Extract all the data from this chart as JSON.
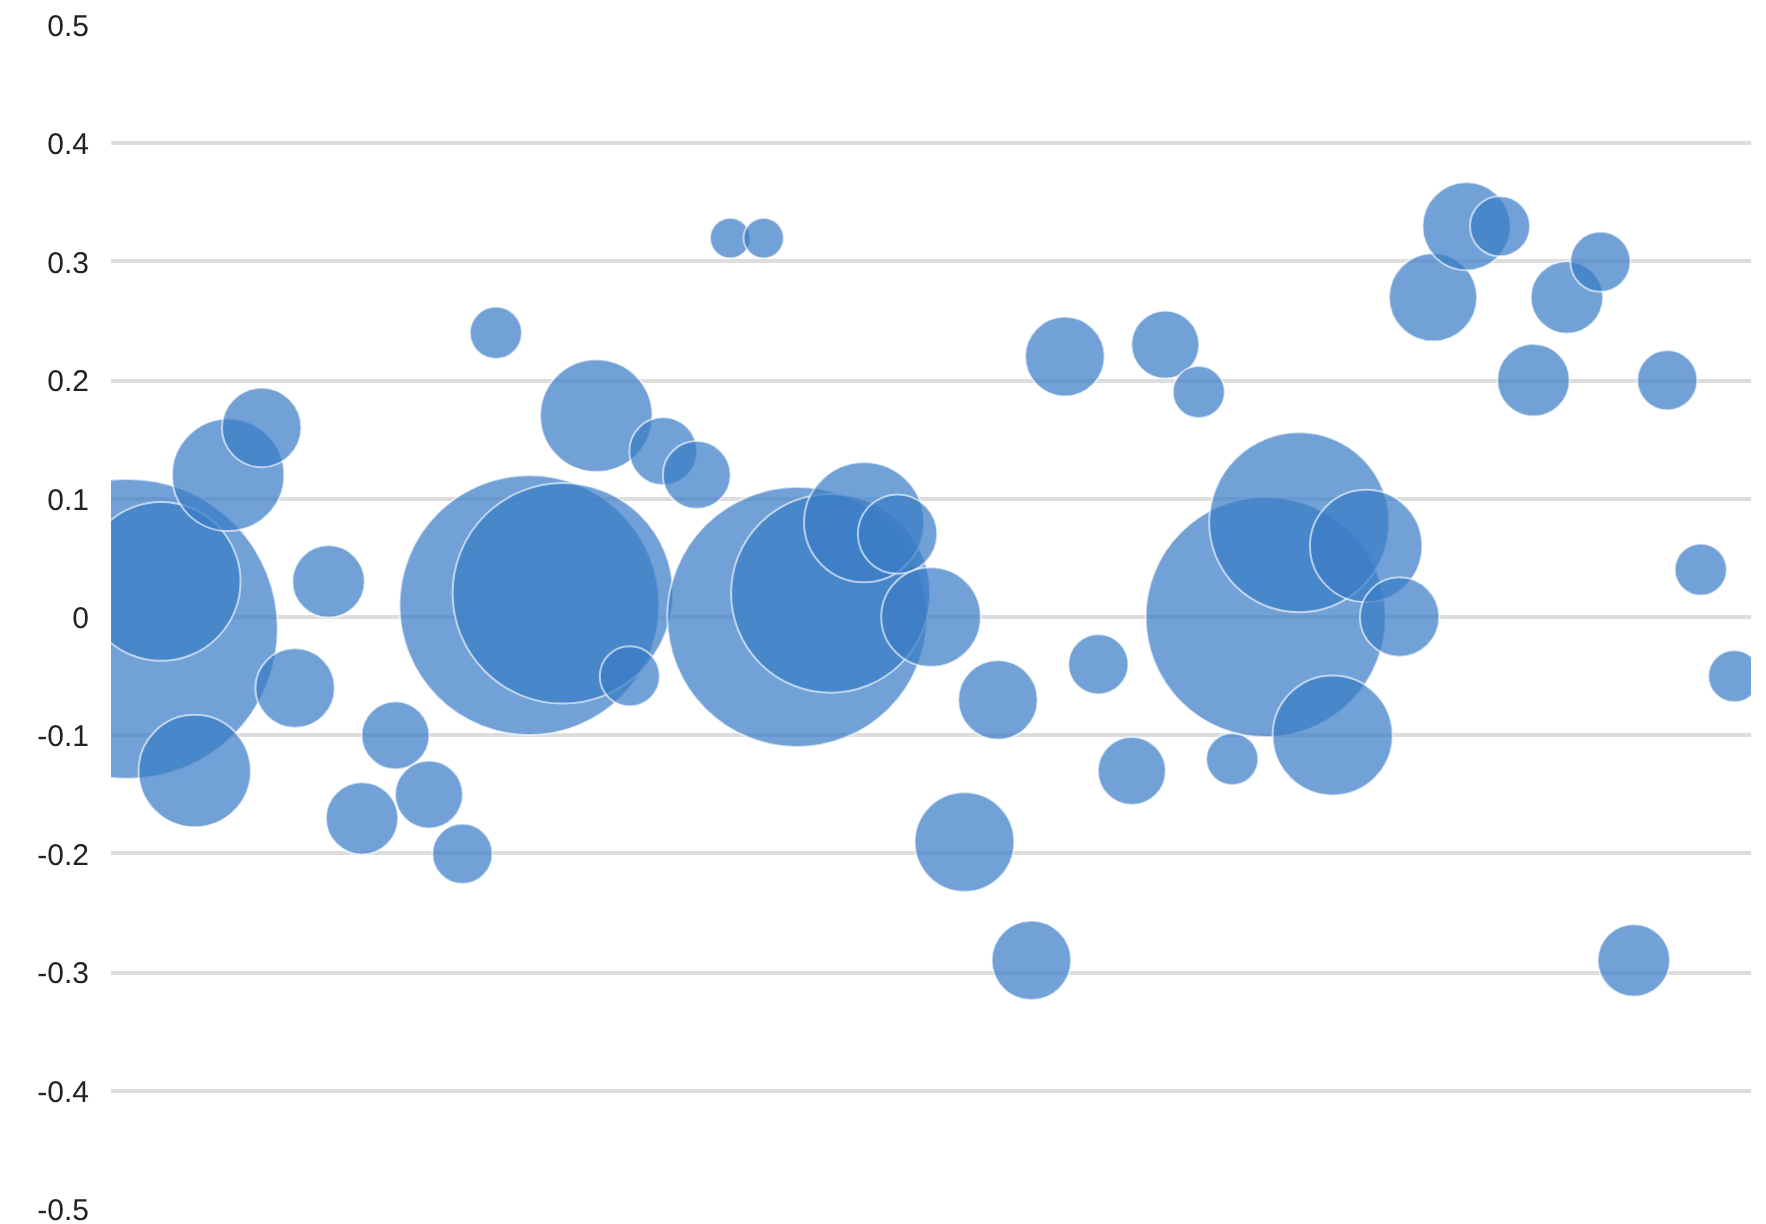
{
  "chart_data": {
    "type": "bubble",
    "categories": [
      null,
      null,
      null,
      null,
      null,
      null,
      null,
      null,
      null,
      null,
      null,
      null,
      null,
      null,
      null,
      null,
      null,
      null,
      null,
      null,
      null,
      null,
      null,
      null,
      null,
      null,
      null,
      null,
      null,
      null,
      null,
      null,
      null,
      null,
      null,
      null,
      null,
      null,
      null,
      null,
      null,
      null,
      null,
      null,
      null,
      null,
      null,
      null,
      null
    ],
    "series": [
      {
        "color": "#3a7dc6",
        "values": [
          -0.01,
          0.03,
          -0.13,
          0.12,
          0.16,
          -0.06,
          0.03,
          -0.17,
          -0.1,
          -0.15,
          -0.2,
          0.24,
          0.01,
          0.02,
          0.17,
          -0.05,
          0.14,
          0.12,
          0.32,
          0.32,
          0.0,
          0.02,
          0.08,
          0.07,
          0.0,
          -0.19,
          -0.07,
          -0.29,
          0.22,
          -0.04,
          -0.13,
          0.23,
          0.19,
          -0.12,
          0.0,
          0.08,
          -0.1,
          0.06,
          0.0,
          0.27,
          0.33,
          0.33,
          0.2,
          0.27,
          0.3,
          -0.29,
          0.2,
          0.04,
          -0.05
        ],
        "sizes": [
          1,
          0.28,
          0.14,
          0.14,
          0.07,
          0.07,
          0.058,
          0.058,
          0.051,
          0.051,
          0.04,
          0.03,
          0.75,
          0.54,
          0.14,
          0.04,
          0.051,
          0.051,
          0.018,
          0.018,
          0.75,
          0.44,
          0.16,
          0.07,
          0.11,
          0.11,
          0.07,
          0.07,
          0.07,
          0.04,
          0.051,
          0.051,
          0.03,
          0.03,
          0.64,
          0.36,
          0.16,
          0.14,
          0.07,
          0.086,
          0.086,
          0.04,
          0.058,
          0.058,
          0.04,
          0.058,
          0.04,
          0.03,
          0.03
        ]
      }
    ],
    "ylim": [
      -0.5,
      0.5
    ],
    "yticks": [
      {
        "value": 0.5,
        "label": "0.5"
      },
      {
        "value": 0.4,
        "label": "0.4"
      },
      {
        "value": 0.3,
        "label": "0.3"
      },
      {
        "value": 0.2,
        "label": "0.2"
      },
      {
        "value": 0.1,
        "label": "0.1"
      },
      {
        "value": 0,
        "label": "0"
      },
      {
        "value": -0.1,
        "label": "-0.1"
      },
      {
        "value": -0.2,
        "label": "-0.2"
      },
      {
        "value": -0.3,
        "label": "-0.3"
      },
      {
        "value": -0.4,
        "label": "-0.4"
      },
      {
        "value": -0.5,
        "label": "-0.5"
      }
    ],
    "grid": "y",
    "tick_labels": "y"
  }
}
